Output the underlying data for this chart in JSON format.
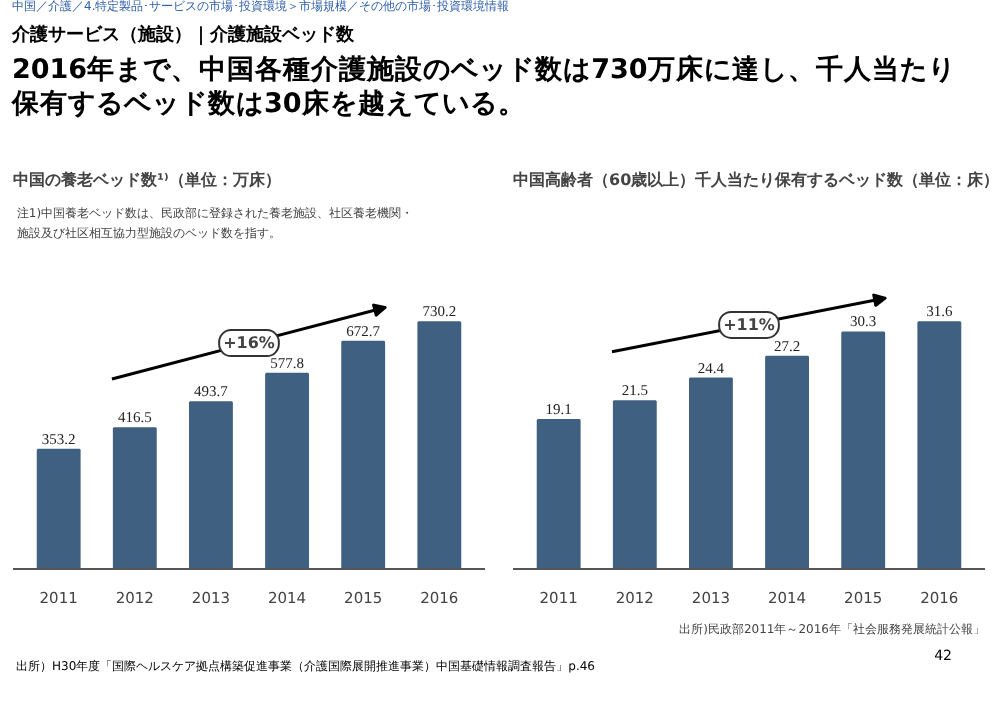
{
  "chart_data": [
    {
      "type": "other",
      "title": "2016年まで、中国各種介護施設のベッド数は730万床に達し、千人当たり保有するベッド数は30床を越えている。",
      "subtitle": "介護サービス（施設）｜介護施設ベッド数",
      "annotations": [
        "中国／介護／4.特定製品･サービスの市場･投資環境＞市場規模／その他の市場･投資環境情報",
        "出所）H30年度「国際ヘルスケア拠点構築促進事業（介護国際展開推進事業）中国基礎情報調査報告」p.46",
        "42"
      ]
    },
    {
      "type": "bar",
      "title": "中国の養老ベッド数¹⁾（単位：万床）",
      "subtitle": "注1)中国養老ベッド数は、民政部に登録された養老施設、社区養老機関・施設及び社区相互協力型施設のベッド数を指す。",
      "categories": [
        "2011",
        "2012",
        "2013",
        "2014",
        "2015",
        "2016"
      ],
      "values": [
        353.2,
        416.5,
        493.7,
        577.8,
        672.7,
        730.2
      ],
      "color": "#3f6080",
      "data_labels": true,
      "annotations": [
        "+16%"
      ]
    },
    {
      "type": "bar",
      "title": "中国高齢者（60歳以上）千人当たり保有するベッド数（単位：床）",
      "categories": [
        "2011",
        "2012",
        "2013",
        "2014",
        "2015",
        "2016"
      ],
      "values": [
        19.1,
        21.5,
        24.4,
        27.2,
        30.3,
        31.6
      ],
      "color": "#3f6080",
      "data_labels": true,
      "annotations": [
        "+11%",
        "出所)民政部2011年～2016年「社会服務発展統計公報」"
      ]
    }
  ]
}
